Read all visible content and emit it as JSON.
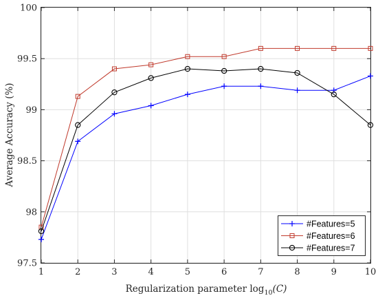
{
  "chart_data": {
    "type": "line",
    "title": "",
    "xlabel": "Regularization parameter log",
    "xlabel_sub": "10",
    "xlabel_arg": "(C)",
    "ylabel": "Average Accuracy (%)",
    "xlim": [
      1,
      10
    ],
    "ylim": [
      97.5,
      100
    ],
    "xticks": [
      "1",
      "2",
      "3",
      "4",
      "5",
      "6",
      "7",
      "8",
      "9",
      "10"
    ],
    "yticks": [
      "97.5",
      "98",
      "98.5",
      "99",
      "99.5",
      "100"
    ],
    "grid": true,
    "legend_position": "bottom-right",
    "x": [
      1,
      2,
      3,
      4,
      5,
      6,
      7,
      8,
      9,
      10
    ],
    "series": [
      {
        "name": "#Features=5",
        "color": "#0000ff",
        "marker": "plus",
        "values": [
          97.73,
          98.69,
          98.96,
          99.04,
          99.15,
          99.23,
          99.23,
          99.19,
          99.19,
          99.33
        ]
      },
      {
        "name": "#Features=6",
        "color": "#c0392b",
        "marker": "square",
        "values": [
          97.85,
          99.13,
          99.4,
          99.44,
          99.52,
          99.52,
          99.6,
          99.6,
          99.6,
          99.6
        ]
      },
      {
        "name": "#Features=7",
        "color": "#000000",
        "marker": "circle",
        "values": [
          97.81,
          98.85,
          99.17,
          99.31,
          99.4,
          99.38,
          99.4,
          99.36,
          99.15,
          98.85
        ]
      }
    ]
  }
}
